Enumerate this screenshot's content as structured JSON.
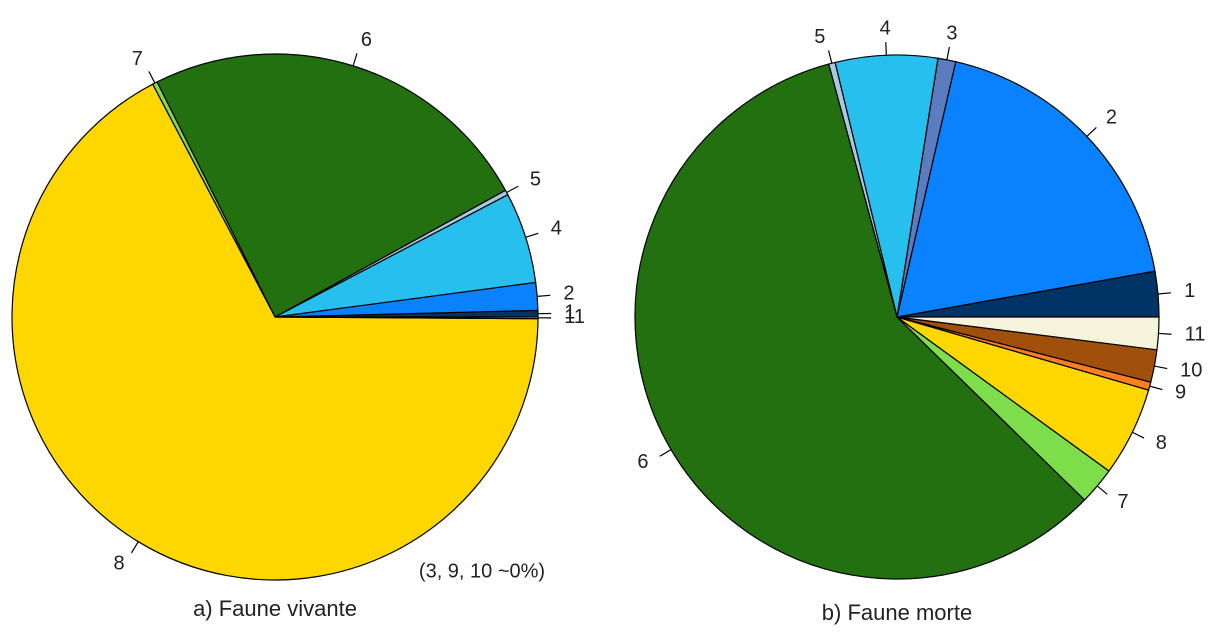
{
  "chart_data": [
    {
      "type": "pie",
      "title": "a) Faune vivante",
      "annotation": "(3, 9, 10 ~0%)",
      "categories": [
        "1",
        "2",
        "4",
        "5",
        "6",
        "7",
        "8",
        "11"
      ],
      "values": [
        0.4,
        1.7,
        5.6,
        0.3,
        24.4,
        0.3,
        67.2,
        0.1
      ],
      "colors": [
        "#003366",
        "#0a82ff",
        "#27c0ee",
        "#a9c9e2",
        "#237010",
        "#7ddd4a",
        "#ffd700",
        "#f5f3dc"
      ]
    },
    {
      "type": "pie",
      "title": "b) Faune morte",
      "categories": [
        "1",
        "2",
        "3",
        "4",
        "5",
        "6",
        "7",
        "8",
        "9",
        "10",
        "11"
      ],
      "values": [
        2.8,
        18.6,
        1.1,
        6.3,
        0.4,
        58.5,
        2.3,
        5.5,
        0.5,
        2.0,
        2.0
      ],
      "colors": [
        "#003366",
        "#0a82ff",
        "#5b7dc0",
        "#27c0ee",
        "#a9c9e2",
        "#237010",
        "#7ddd4a",
        "#ffd700",
        "#ff7f20",
        "#a0500a",
        "#f5f3dc"
      ]
    }
  ]
}
